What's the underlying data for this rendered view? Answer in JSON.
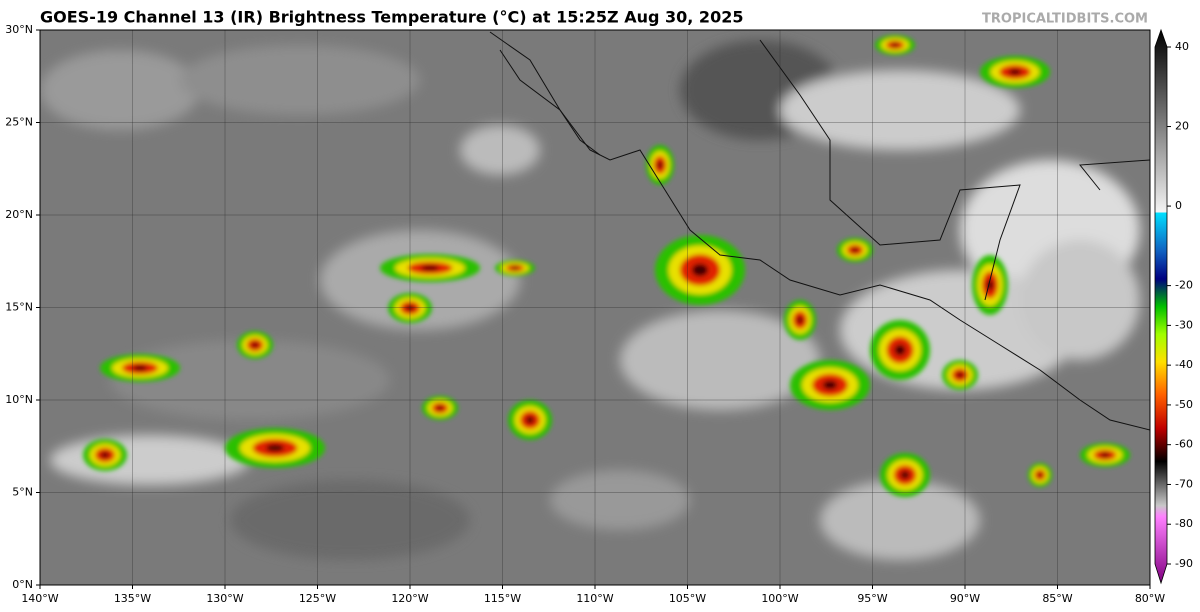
{
  "header": {
    "title": "GOES-19 Channel 13 (IR) Brightness Temperature (°C) at 15:25Z Aug 30, 2025",
    "watermark": "TROPICALTIDBITS.COM"
  },
  "map": {
    "lat_labels": [
      "0°N",
      "5°N",
      "10°N",
      "15°N",
      "20°N",
      "25°N",
      "30°N"
    ],
    "lon_labels": [
      "140°W",
      "135°W",
      "130°W",
      "125°W",
      "120°W",
      "115°W",
      "110°W",
      "105°W",
      "100°W",
      "95°W",
      "90°W",
      "85°W",
      "80°W"
    ]
  },
  "colorbar": {
    "ticks": [
      40,
      20,
      0,
      -20,
      -30,
      -40,
      -50,
      -60,
      -70,
      -80,
      -90
    ]
  }
}
